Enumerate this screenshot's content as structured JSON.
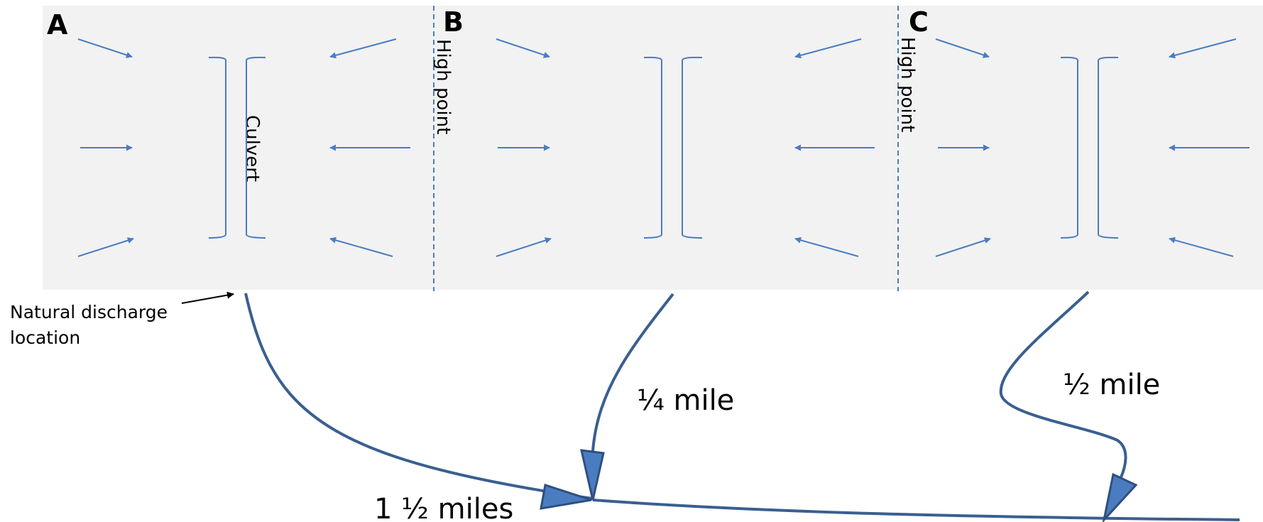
{
  "sections": [
    {
      "id": "A",
      "label": "A"
    },
    {
      "id": "B",
      "label": "B"
    },
    {
      "id": "C",
      "label": "C"
    }
  ],
  "culvert_label": "Culvert",
  "divider_label": "High point",
  "discharge_note": [
    "Natural discharge",
    "location"
  ],
  "distances": {
    "a": "1 ½  miles",
    "b": "¼ mile",
    "c": "½ mile"
  },
  "colors": {
    "panel": "#f2f2f2",
    "flow_arrow": "#4a7cc0",
    "stream": "#3a5f90",
    "stream_arrowhead": "#4a7cc0"
  }
}
